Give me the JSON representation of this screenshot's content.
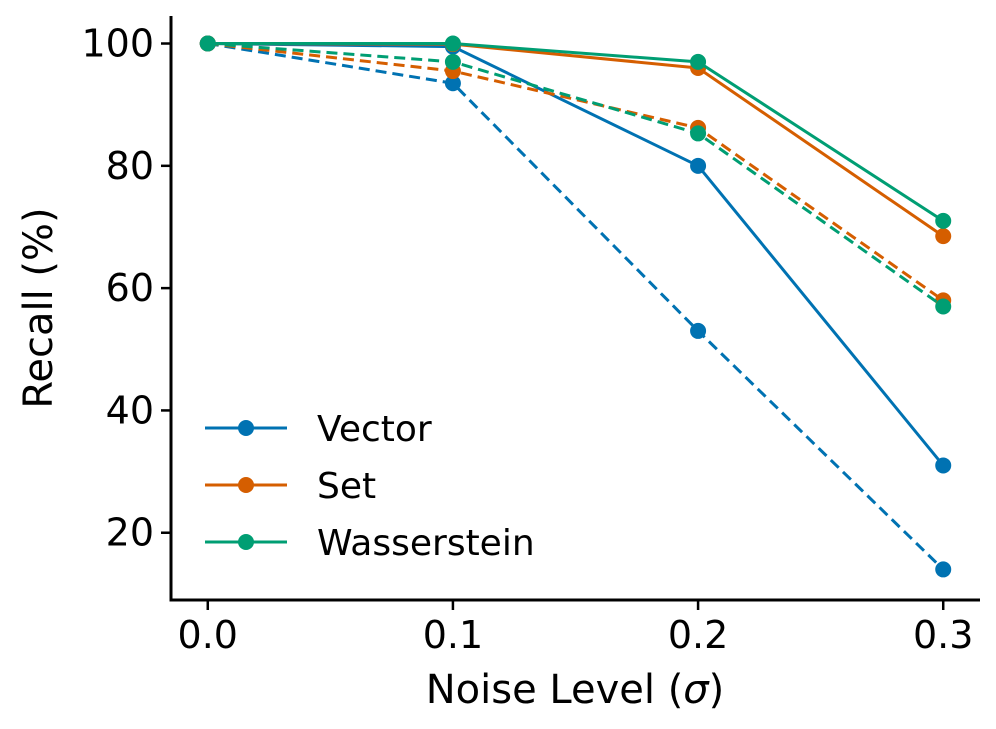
{
  "chart_data": {
    "type": "line",
    "title": "",
    "xlabel_prefix": "Noise Level (",
    "xlabel_symbol": "σ",
    "xlabel_suffix": ")",
    "ylabel": "Recall (%)",
    "x": [
      0.0,
      0.1,
      0.2,
      0.3
    ],
    "x_tick_labels": [
      "0.0",
      "0.1",
      "0.2",
      "0.3"
    ],
    "y_ticks": [
      20,
      40,
      60,
      80,
      100
    ],
    "y_tick_labels": [
      "20",
      "40",
      "60",
      "80",
      "100"
    ],
    "xlim": [
      -0.015,
      0.315
    ],
    "ylim": [
      9,
      104.5
    ],
    "legend_position": "lower-left",
    "series": [
      {
        "name": "Vector",
        "color": "#0072b2",
        "style": "solid",
        "values": [
          100,
          99.5,
          80,
          31
        ]
      },
      {
        "name": "Set",
        "color": "#d55e00",
        "style": "solid",
        "values": [
          100,
          99.9,
          96,
          68.5
        ]
      },
      {
        "name": "Wasserstein",
        "color": "#009e73",
        "style": "solid",
        "values": [
          100,
          100,
          97,
          71
        ]
      },
      {
        "name": "Vector",
        "color": "#0072b2",
        "style": "dashed",
        "values": [
          100,
          93.5,
          53,
          14
        ]
      },
      {
        "name": "Set",
        "color": "#d55e00",
        "style": "dashed",
        "values": [
          100,
          95.5,
          86.2,
          58
        ]
      },
      {
        "name": "Wasserstein",
        "color": "#009e73",
        "style": "dashed",
        "values": [
          100,
          97,
          85.3,
          57
        ]
      }
    ],
    "legend": [
      {
        "label": "Vector",
        "color": "#0072b2"
      },
      {
        "label": "Set",
        "color": "#d55e00"
      },
      {
        "label": "Wasserstein",
        "color": "#009e73"
      }
    ]
  }
}
